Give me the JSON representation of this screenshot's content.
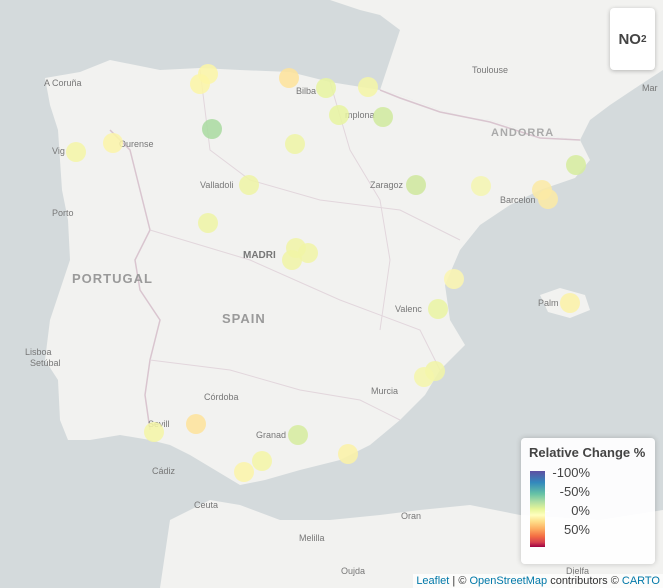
{
  "pollutant": {
    "main": "NO",
    "sub": "2"
  },
  "legend": {
    "title": "Relative Change %",
    "labels": [
      "-100%",
      "-50%",
      "0%",
      "50%"
    ]
  },
  "attribution": {
    "leaflet": "Leaflet",
    "sep": " | © ",
    "osm": "OpenStreetMap",
    "mid": " contributors © ",
    "carto": "CARTO"
  },
  "places": {
    "a_coruna": "A Coruña",
    "vigo": "Vig",
    "ourense": "Ourense",
    "porto": "Porto",
    "valladolid": "Valladoli",
    "bilbao": "Bilba",
    "pamplona": "mplona",
    "zaragoza": "Zaragoz",
    "toulouse": "Toulouse",
    "andorra": "ANDORRA",
    "barcelona": "Barcelon",
    "madrid": "MADRI",
    "portugal": "PORTUGAL",
    "spain": "SPAIN",
    "valencia": "Valenc",
    "palma": "Palm",
    "lisboa": "Lisboa",
    "setubal": "Setúbal",
    "cordoba": "Córdoba",
    "murcia": "Murcia",
    "sevilla": "Sevill",
    "granada": "Granad",
    "cadiz": "Cádiz",
    "ceuta": "Ceuta",
    "oran": "Oran",
    "melilla": "Melilla",
    "oujda": "Oujda",
    "djelfa": "Djelfa",
    "mar": "Mar"
  },
  "colors": {
    "sea": "#d4dadc",
    "land": "#f2f2f0",
    "border": "#d9c5cf"
  }
}
